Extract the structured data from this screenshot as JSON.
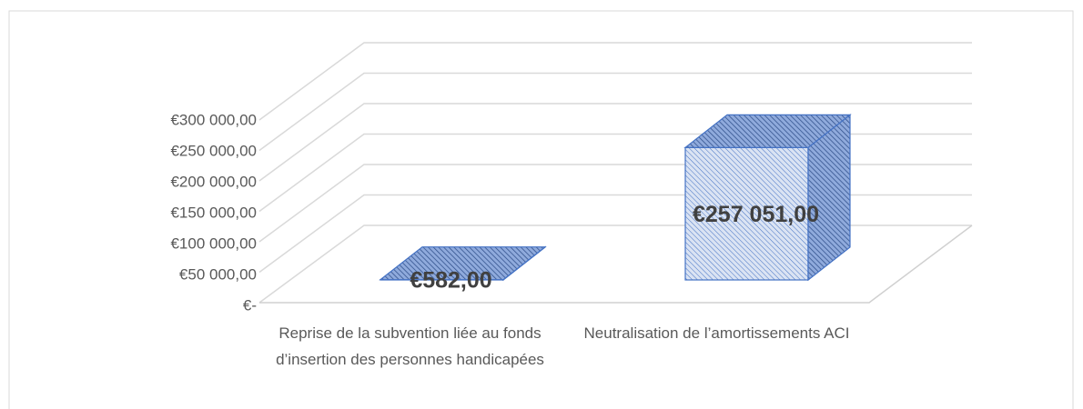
{
  "chart_data": {
    "type": "bar3d",
    "categories": [
      "Reprise de la subvention liée au fonds d’insertion des personnes handicapées",
      "Neutralisation de l’amortissements ACI"
    ],
    "values": [
      582,
      257051
    ],
    "value_labels": [
      "€582,00",
      "€257 051,00"
    ],
    "color": "#4472c4",
    "ylim": [
      0,
      300000
    ],
    "yticks": [
      {
        "value": 0,
        "label": "€-"
      },
      {
        "value": 50000,
        "label": "€50 000,00"
      },
      {
        "value": 100000,
        "label": "€100 000,00"
      },
      {
        "value": 150000,
        "label": "€150 000,00"
      },
      {
        "value": 200000,
        "label": "€200 000,00"
      },
      {
        "value": 250000,
        "label": "€250 000,00"
      },
      {
        "value": 300000,
        "label": "€300 000,00"
      }
    ],
    "grid": true
  }
}
